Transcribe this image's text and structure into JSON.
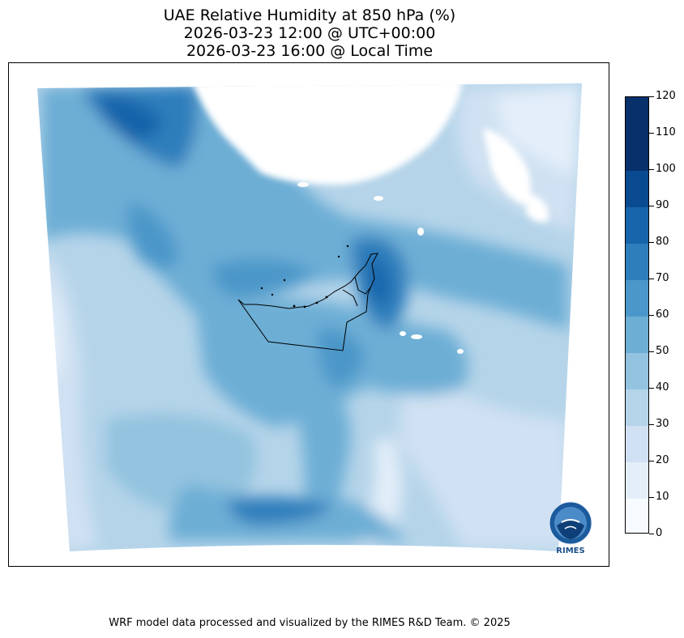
{
  "title": {
    "line1": "UAE Relative Humidity at 850 hPa (%)",
    "line2": "2026-03-23 12:00 @ UTC+00:00",
    "line3": "2026-03-23 16:00 @ Local Time"
  },
  "colorbar": {
    "ticks": [
      "0",
      "10",
      "20",
      "30",
      "40",
      "50",
      "60",
      "70",
      "80",
      "90",
      "100",
      "110",
      "120"
    ],
    "colors": [
      "#f7fbff",
      "#e3eef9",
      "#cfe1f2",
      "#b5d4e9",
      "#93c3df",
      "#6daed5",
      "#4b97c9",
      "#2f7ebc",
      "#1864aa",
      "#0a4a90",
      "#08306b",
      "#08306b"
    ]
  },
  "logo": {
    "text": "RIMES"
  },
  "footer": "WRF model data processed and visualized by the RIMES R&D Team. © 2025"
}
